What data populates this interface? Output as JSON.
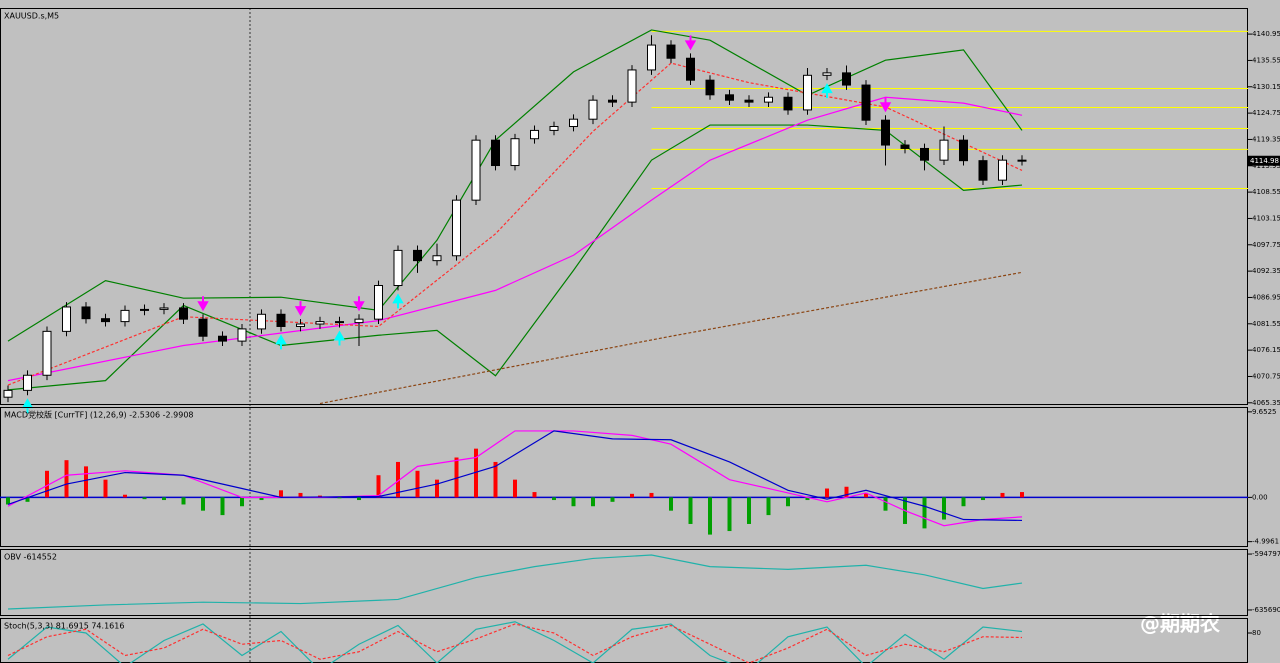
{
  "chart_data": [
    {
      "type": "candlestick",
      "title": "XAUUSD.s,M5",
      "open": [
        4066.5,
        4067.9,
        4071.0,
        4080.0,
        4085.0,
        4082.6,
        4082.0,
        4084.3,
        4084.5,
        4084.8,
        4082.5,
        4079.0,
        4078.0,
        4080.5,
        4083.5,
        4081.0,
        4081.5,
        4082.0,
        4081.8,
        4082.5,
        4089.4,
        4096.6,
        4094.5,
        4095.5,
        4106.9,
        4119.2,
        4114.0,
        4119.5,
        4121.2,
        4122.0,
        4123.5,
        4127.4,
        4127.0,
        4133.6,
        4138.7,
        4136.0,
        4131.5,
        4128.5,
        4127.4,
        4127.0,
        4128.0,
        4125.4,
        4132.5,
        4133.0,
        4130.5,
        4123.3,
        4118.2,
        4117.5,
        4115.1,
        4119.2,
        4115.0,
        4111.0,
        4115.1
      ],
      "high": [
        4068.9,
        4072.0,
        4081.0,
        4086.0,
        4086.0,
        4083.6,
        4085.3,
        4085.5,
        4085.8,
        4085.8,
        4083.5,
        4080.0,
        4081.5,
        4084.5,
        4084.5,
        4082.5,
        4083.0,
        4083.0,
        4083.5,
        4090.4,
        4097.6,
        4097.6,
        4098.0,
        4107.9,
        4120.2,
        4120.2,
        4120.5,
        4122.2,
        4123.0,
        4124.5,
        4128.4,
        4128.4,
        4134.6,
        4140.7,
        4139.7,
        4137.0,
        4132.5,
        4129.5,
        4128.4,
        4129.0,
        4129.0,
        4134.0,
        4134.0,
        4134.5,
        4131.5,
        4124.3,
        4119.2,
        4118.5,
        4122.0,
        4120.2,
        4116.0,
        4116.1,
        4116.1
      ],
      "low": [
        4065.5,
        4066.9,
        4070.0,
        4079.0,
        4081.6,
        4081.0,
        4081.0,
        4083.3,
        4083.5,
        4081.5,
        4078.0,
        4077.0,
        4077.0,
        4079.5,
        4080.0,
        4080.0,
        4080.5,
        4080.8,
        4077.0,
        4081.5,
        4088.4,
        4092.0,
        4093.5,
        4094.5,
        4105.9,
        4113.0,
        4113.0,
        4118.5,
        4120.2,
        4121.0,
        4122.5,
        4126.0,
        4126.0,
        4132.6,
        4135.0,
        4130.5,
        4127.5,
        4126.4,
        4126.0,
        4126.0,
        4124.4,
        4124.4,
        4131.5,
        4129.5,
        4122.3,
        4114.0,
        4116.5,
        4113.0,
        4114.1,
        4114.0,
        4110.0,
        4110.0,
        4114.0
      ],
      "close": [
        4067.9,
        4071.0,
        4080.0,
        4085.0,
        4082.6,
        4082.0,
        4084.3,
        4084.5,
        4084.8,
        4082.5,
        4079.0,
        4078.0,
        4080.5,
        4083.5,
        4081.0,
        4081.5,
        4082.0,
        4081.8,
        4082.5,
        4089.4,
        4096.6,
        4094.5,
        4095.5,
        4106.9,
        4119.2,
        4114.0,
        4119.5,
        4121.2,
        4122.0,
        4123.5,
        4127.4,
        4127.0,
        4133.6,
        4138.7,
        4136.0,
        4131.5,
        4128.5,
        4127.4,
        4127.0,
        4128.0,
        4125.4,
        4132.5,
        4133.0,
        4130.5,
        4123.3,
        4118.2,
        4117.5,
        4115.1,
        4119.2,
        4115.0,
        4111.0,
        4115.1,
        4114.98
      ],
      "up_color": "#ffffff",
      "down_color": "#000000",
      "ylim": [
        4064.9,
        4146.3
      ],
      "yticks": [
        4140.95,
        4135.55,
        4130.15,
        4124.75,
        4119.35,
        4113.95,
        4108.55,
        4103.15,
        4097.75,
        4092.35,
        4086.95,
        4081.55,
        4076.15,
        4070.75,
        4065.35
      ],
      "last_price": 4114.98,
      "overlays": [
        {
          "color": "#008000",
          "dash": false,
          "x": [
            0,
            5,
            9,
            14,
            19,
            22,
            25,
            29,
            33,
            36,
            41,
            45,
            49,
            52
          ],
          "values": [
            4078.0,
            4090.4,
            4086.8,
            4087.0,
            4084.3,
            4098.7,
            4119.2,
            4133.2,
            4141.8,
            4139.7,
            4128.4,
            4135.6,
            4137.7,
            4121.2
          ]
        },
        {
          "color": "#008000",
          "dash": false,
          "x": [
            0,
            5,
            9,
            14,
            19,
            22,
            25,
            29,
            33,
            36,
            41,
            45,
            49,
            52
          ],
          "values": [
            4068.0,
            4069.9,
            4085.3,
            4077.1,
            4079.2,
            4080.2,
            4070.9,
            4092.5,
            4115.1,
            4122.3,
            4122.3,
            4121.2,
            4108.9,
            4110.0
          ]
        },
        {
          "color": "#ff00ff",
          "dash": false,
          "x": [
            0,
            9,
            19,
            25,
            29,
            33,
            36,
            41,
            45,
            49,
            52
          ],
          "values": [
            4069.9,
            4077.1,
            4082.2,
            4088.4,
            4095.6,
            4106.9,
            4115.1,
            4123.3,
            4128.0,
            4126.8,
            4124.3
          ]
        },
        {
          "color": "#ff3030",
          "dash": true,
          "x": [
            0,
            9,
            19,
            25,
            30,
            34,
            38,
            45,
            52
          ],
          "values": [
            4069.0,
            4083.0,
            4081.0,
            4100.0,
            4121.0,
            4135.0,
            4131.0,
            4126.0,
            4113.0
          ]
        },
        {
          "color": "#8b4513",
          "dash": true,
          "x": [
            16,
            34,
            52
          ],
          "values": [
            4065.2,
            4079.0,
            4092.1
          ]
        }
      ],
      "levels": [
        4141.5,
        4129.8,
        4125.9,
        4121.6,
        4117.3,
        4109.3
      ],
      "levels_color": "#ffff00",
      "levels_start": 33,
      "down_arrows": [
        10,
        15,
        18,
        35,
        45
      ],
      "down_color_arrow": "#ff00ff",
      "up_arrows": [
        1,
        14,
        17,
        20,
        42
      ],
      "up_color_arrow": "#00ffff"
    },
    {
      "type": "macd",
      "title": "MACD党校版 [CurrTF] (12,26,9) -2.5306 -2.9908",
      "histogram": [
        -0.8,
        -0.5,
        3.0,
        4.2,
        3.5,
        2.0,
        0.3,
        -0.2,
        -0.3,
        -0.8,
        -1.5,
        -2.0,
        -1.0,
        -0.3,
        0.8,
        0.5,
        0.2,
        -0.1,
        -0.3,
        2.5,
        4.0,
        3.0,
        2.0,
        4.5,
        5.5,
        4.0,
        2.0,
        0.6,
        -0.3,
        -1.0,
        -1.0,
        -0.5,
        0.4,
        0.5,
        -1.5,
        -3.0,
        -4.2,
        -3.8,
        -3.0,
        -2.0,
        -1.0,
        -0.3,
        1.0,
        1.2,
        0.5,
        -1.5,
        -3.0,
        -3.5,
        -2.5,
        -1.0,
        -0.3,
        0.5,
        0.6
      ],
      "positive_color": "#ff0000",
      "negative_color": "#00a000",
      "series": [
        {
          "color": "#ff00ff",
          "x": [
            0,
            3,
            6,
            9,
            12,
            16,
            19,
            21,
            24,
            26,
            29,
            32,
            34,
            37,
            40,
            42,
            44,
            46,
            48,
            50,
            52
          ],
          "values": [
            -1.0,
            2.5,
            3.0,
            2.5,
            0.0,
            0.0,
            0.2,
            3.5,
            4.5,
            7.5,
            7.5,
            7.0,
            6.0,
            2.0,
            0.5,
            -0.5,
            0.5,
            -1.5,
            -3.2,
            -2.5,
            -2.2
          ]
        },
        {
          "color": "#0000cc",
          "x": [
            0,
            3,
            6,
            9,
            12,
            14,
            19,
            22,
            25,
            28,
            31,
            34,
            37,
            40,
            42,
            44,
            47,
            49,
            52
          ],
          "values": [
            -0.8,
            1.5,
            2.8,
            2.5,
            1.0,
            0.0,
            0.1,
            1.5,
            3.5,
            7.5,
            6.6,
            6.5,
            4.0,
            0.8,
            -0.2,
            0.8,
            -1.0,
            -2.5,
            -2.6
          ]
        }
      ],
      "ylim": [
        -5.6,
        10.2
      ],
      "yticks": [
        9.6525,
        {
          "value": 0,
          "label": "0.00"
        },
        -4.9961
      ]
    },
    {
      "type": "line",
      "title": "OBV -614552",
      "series": [
        {
          "color": "#20b2aa",
          "x": [
            0,
            5,
            10,
            15,
            20,
            24,
            27,
            30,
            33,
            36,
            40,
            44,
            47,
            50,
            52
          ],
          "values": [
            -635000,
            -632000,
            -630000,
            -631000,
            -628000,
            -612000,
            -604000,
            -598000,
            -595500,
            -604000,
            -606000,
            -603000,
            -610000,
            -620000,
            -616000
          ]
        }
      ],
      "ylim": [
        -640100,
        -591100
      ],
      "yticks": [
        -594797,
        -635690
      ]
    },
    {
      "type": "line",
      "title": "Stoch(5,3,3) 81.6915 74.1616",
      "series": [
        {
          "color": "#20b2aa",
          "x": [
            0,
            2,
            4,
            6,
            8,
            10,
            12,
            14,
            16,
            18,
            20,
            22,
            24,
            26,
            28,
            30,
            32,
            34,
            36,
            38,
            40,
            42,
            44,
            46,
            48,
            50,
            52
          ],
          "values": [
            45,
            88,
            80,
            35,
            70,
            92,
            50,
            82,
            30,
            65,
            90,
            40,
            85,
            95,
            70,
            40,
            85,
            92,
            50,
            30,
            75,
            88,
            35,
            78,
            45,
            88,
            82
          ]
        },
        {
          "color": "#ff3030",
          "dash": true,
          "x": [
            0,
            2,
            4,
            6,
            8,
            10,
            12,
            14,
            16,
            18,
            20,
            22,
            24,
            26,
            28,
            30,
            32,
            34,
            36,
            38,
            40,
            42,
            44,
            46,
            48,
            50,
            52
          ],
          "values": [
            50,
            75,
            85,
            50,
            60,
            85,
            65,
            70,
            45,
            55,
            82,
            55,
            72,
            92,
            80,
            50,
            75,
            90,
            65,
            40,
            60,
            85,
            50,
            65,
            55,
            75,
            74
          ]
        }
      ],
      "ylim": [
        40,
        100
      ],
      "yticks": [
        80
      ]
    }
  ],
  "watermark": "@期期农"
}
